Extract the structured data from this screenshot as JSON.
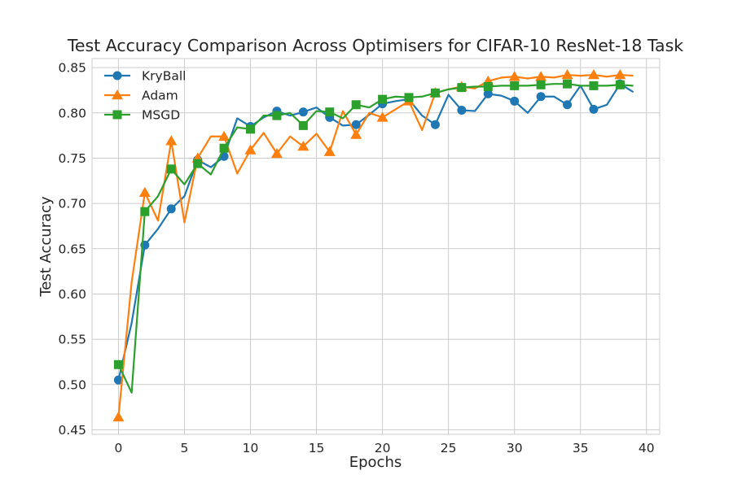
{
  "chart_data": {
    "type": "line",
    "title": "Test Accuracy Comparison Across Optimisers for CIFAR-10 ResNet-18 Task",
    "xlabel": "Epochs",
    "ylabel": "Test Accuracy",
    "xlim": [
      -2,
      41
    ],
    "ylim": [
      0.445,
      0.86
    ],
    "xticks": [
      0,
      5,
      10,
      15,
      20,
      25,
      30,
      35,
      40
    ],
    "yticks": [
      0.45,
      0.5,
      0.55,
      0.6,
      0.65,
      0.7,
      0.75,
      0.8,
      0.85
    ],
    "grid": true,
    "legend_position": "upper-left",
    "marker_every": 2,
    "x": [
      0,
      1,
      2,
      3,
      4,
      5,
      6,
      7,
      8,
      9,
      10,
      11,
      12,
      13,
      14,
      15,
      16,
      17,
      18,
      19,
      20,
      21,
      22,
      23,
      24,
      25,
      26,
      27,
      28,
      29,
      30,
      31,
      32,
      33,
      34,
      35,
      36,
      37,
      38,
      39
    ],
    "series": [
      {
        "name": "KryBall",
        "color": "#1f77b4",
        "marker": "circle",
        "values": [
          0.505,
          0.568,
          0.654,
          0.672,
          0.694,
          0.708,
          0.748,
          0.74,
          0.752,
          0.794,
          0.785,
          0.795,
          0.802,
          0.797,
          0.801,
          0.806,
          0.795,
          0.786,
          0.787,
          0.798,
          0.81,
          0.813,
          0.815,
          0.797,
          0.787,
          0.82,
          0.803,
          0.802,
          0.821,
          0.819,
          0.813,
          0.8,
          0.818,
          0.818,
          0.809,
          0.83,
          0.804,
          0.809,
          0.832,
          0.823
        ]
      },
      {
        "name": "Adam",
        "color": "#ff7f0e",
        "marker": "triangle",
        "values": [
          0.464,
          0.613,
          0.712,
          0.681,
          0.769,
          0.679,
          0.75,
          0.774,
          0.774,
          0.733,
          0.759,
          0.778,
          0.755,
          0.774,
          0.763,
          0.777,
          0.757,
          0.802,
          0.776,
          0.8,
          0.795,
          0.804,
          0.813,
          0.781,
          0.822,
          0.826,
          0.829,
          0.827,
          0.835,
          0.839,
          0.84,
          0.838,
          0.84,
          0.839,
          0.842,
          0.841,
          0.842,
          0.84,
          0.842,
          0.841
        ]
      },
      {
        "name": "MSGD",
        "color": "#2ca02c",
        "marker": "square",
        "values": [
          0.522,
          0.491,
          0.691,
          0.708,
          0.738,
          0.721,
          0.744,
          0.732,
          0.761,
          0.784,
          0.782,
          0.797,
          0.797,
          0.8,
          0.786,
          0.802,
          0.801,
          0.794,
          0.809,
          0.806,
          0.815,
          0.818,
          0.817,
          0.818,
          0.822,
          0.826,
          0.828,
          0.829,
          0.829,
          0.83,
          0.83,
          0.83,
          0.831,
          0.832,
          0.832,
          0.83,
          0.83,
          0.83,
          0.831,
          0.83
        ]
      }
    ]
  }
}
